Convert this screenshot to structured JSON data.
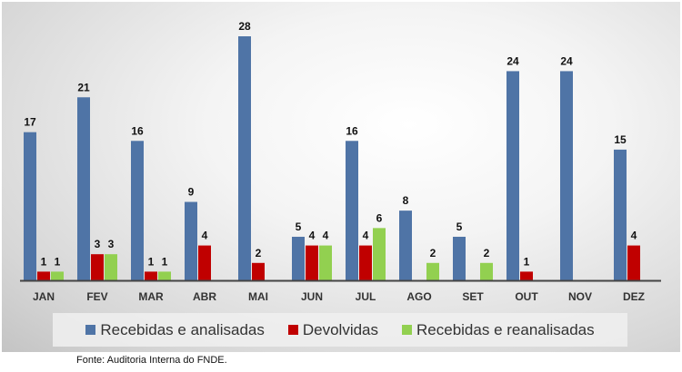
{
  "chart_data": {
    "type": "bar",
    "categories": [
      "JAN",
      "FEV",
      "MAR",
      "ABR",
      "MAI",
      "JUN",
      "JUL",
      "AGO",
      "SET",
      "OUT",
      "NOV",
      "DEZ"
    ],
    "series": [
      {
        "name": "Recebidas e analisadas",
        "color": "#4f74a6",
        "values": [
          17,
          21,
          16,
          9,
          28,
          5,
          16,
          8,
          5,
          24,
          24,
          15
        ]
      },
      {
        "name": "Devolvidas",
        "color": "#c00000",
        "values": [
          1,
          3,
          1,
          4,
          2,
          4,
          4,
          null,
          null,
          1,
          null,
          4
        ]
      },
      {
        "name": "Recebidas e reanalisadas",
        "color": "#92d050",
        "values": [
          1,
          3,
          1,
          null,
          null,
          4,
          6,
          2,
          2,
          null,
          null,
          null
        ]
      }
    ],
    "ylim": [
      0,
      28
    ],
    "grid": false,
    "legend": "bottom",
    "data_labels": true
  },
  "source": "Fonte: Auditoria Interna do FNDE."
}
